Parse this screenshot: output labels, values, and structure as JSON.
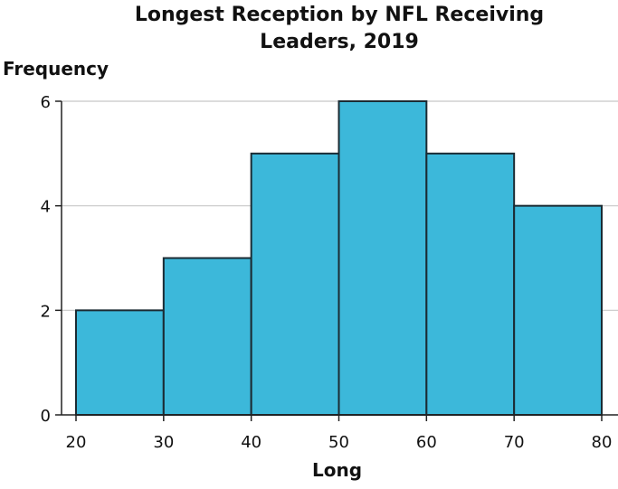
{
  "chart_data": {
    "type": "bar",
    "title_lines": [
      "Longest Reception by NFL Receiving",
      "Leaders, 2019"
    ],
    "xlabel": "Long",
    "ylabel": "Frequency",
    "bin_edges": [
      20,
      30,
      40,
      50,
      60,
      70,
      80
    ],
    "values": [
      2,
      3,
      5,
      6,
      5,
      4
    ],
    "xlim": [
      20,
      80
    ],
    "ylim": [
      0,
      6
    ],
    "yticks": [
      0,
      2,
      4,
      6
    ],
    "xticks": [
      20,
      30,
      40,
      50,
      60,
      70,
      80
    ],
    "grid": true,
    "colors": {
      "bar": "#3cb8da",
      "edge": "#1b2b33",
      "grid": "#c8c8c8"
    }
  }
}
